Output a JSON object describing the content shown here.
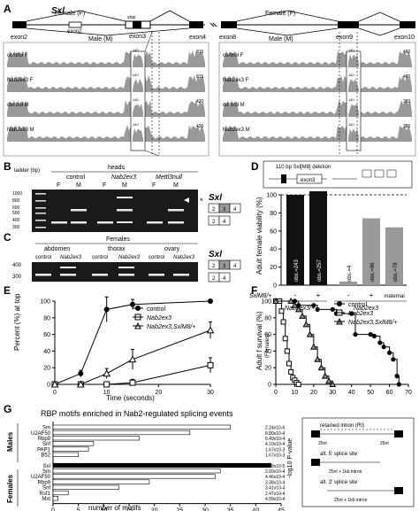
{
  "panel_labels": [
    "A",
    "B",
    "C",
    "D",
    "E",
    "F",
    "G"
  ],
  "panelA": {
    "gene": "Sxl",
    "left_exons": [
      "exon2",
      "exon2",
      "exon3",
      "exon4"
    ],
    "female_label": "Female (F)",
    "male_label": "Male (M)",
    "stop_label": "stop",
    "right_exons": [
      "exon8",
      "exon9",
      "exon10"
    ],
    "right_female_label": "Female (F)",
    "right_male_label": "Male (M)",
    "left_tracks": [
      {
        "label": "control F",
        "scale": "815"
      },
      {
        "label": "Nab2ex3 F",
        "scale": "815"
      },
      {
        "label": "control M",
        "scale": "420"
      },
      {
        "label": "Nab2ex3 M",
        "scale": "420"
      }
    ],
    "right_tracks": [
      {
        "label": "control F",
        "scale": "480"
      },
      {
        "label": "Nab2ex3 F",
        "scale": "480"
      },
      {
        "label": "control M",
        "scale": "380"
      },
      {
        "label": "Nab2ex3 M",
        "scale": "380"
      }
    ],
    "inset_scales": [
      "140",
      "140",
      "140",
      "140"
    ],
    "allele_sup": "ex3"
  },
  "panelB": {
    "ladder": "ladder (bp)",
    "ladder_marks": [
      "1000",
      "800",
      "600",
      "500",
      "400",
      "300"
    ],
    "heads_label": "heads",
    "groups": [
      "control",
      "Nab2ex3",
      "Mettl3null"
    ],
    "lanes": [
      "F",
      "M",
      "F",
      "M",
      "F",
      "M"
    ],
    "gene": "Sxl",
    "star": "*",
    "exons_top": [
      "2",
      "3",
      "4"
    ],
    "exons_bottom": [
      "2",
      "4"
    ]
  },
  "panelC": {
    "females_label": "Females",
    "tissues": [
      "abdomen",
      "thorax",
      "ovary"
    ],
    "lanes": [
      "control",
      "Nab2ex3",
      "control",
      "Nab2ex3",
      "control",
      "Nab2ex3"
    ],
    "ladder_marks": [
      "400",
      "300"
    ],
    "gene": "Sxl",
    "exons_top": [
      "2",
      "3",
      "4"
    ],
    "exons_bottom": [
      "2",
      "4"
    ]
  },
  "panelD": {
    "inset_text": "110 bp Sxl[M8] deletion",
    "exon_label": "exon3",
    "ylabel": "Adult female viability (%)",
    "row1_label": "SxlM8/+",
    "row1_values": [
      "-",
      "+",
      "-",
      "+",
      "maternal"
    ],
    "group1": "Nab2ex3/+",
    "group2": "Nab2ex3",
    "chart_data": {
      "type": "bar",
      "categories": [
        "Nab2ex3/+ ; -",
        "Nab2ex3/+ ; SxlM8/+",
        "Nab2ex3 ; -",
        "Nab2ex3 ; SxlM8/+",
        "Nab2ex3 ; maternal"
      ],
      "values": [
        100,
        104,
        4,
        74,
        64
      ],
      "bar_labels": [
        "obs.=243",
        "obs.=257",
        "obs.=4",
        "obs.=86",
        "obs.=78"
      ],
      "ylim": [
        0,
        100
      ],
      "yticks": [
        0,
        20,
        40,
        60,
        80,
        100
      ]
    }
  },
  "panelE": {
    "ylabel": "Percent (%) at top",
    "xlabel": "Time (seconds)",
    "legend": [
      "control",
      "Nab2ex3",
      "Nab2ex3,SxlM8/+"
    ],
    "chart_data": {
      "type": "line",
      "x": [
        0,
        5,
        10,
        15,
        30
      ],
      "series": [
        {
          "name": "control",
          "values": [
            0,
            13,
            90,
            96,
            100
          ],
          "err": [
            0,
            4,
            15,
            6,
            0
          ]
        },
        {
          "name": "Nab2ex3",
          "values": [
            0,
            0,
            0,
            2,
            23
          ],
          "err": [
            0,
            0,
            0,
            4,
            9
          ]
        },
        {
          "name": "Nab2ex3,SxlM8/+",
          "values": [
            0,
            0,
            13,
            30,
            65
          ],
          "err": [
            0,
            0,
            6,
            12,
            10
          ]
        }
      ],
      "xlim": [
        0,
        30
      ],
      "ylim": [
        0,
        100
      ],
      "xticks": [
        0,
        10,
        20,
        30
      ],
      "yticks": [
        0,
        20,
        40,
        60,
        80,
        100
      ]
    }
  },
  "panelF": {
    "ylabel": "Adult f survival (%)",
    "ylabel2": "(Females)",
    "legend": [
      "control",
      "Nab2ex3",
      "Nab2ex3,SxlM8/+"
    ],
    "chart_data": {
      "type": "line",
      "xlim": [
        0,
        70
      ],
      "ylim": [
        0,
        100
      ],
      "xticks": [
        0,
        10,
        20,
        30,
        40,
        50,
        60,
        70
      ],
      "yticks": [
        0,
        20,
        40,
        60,
        80,
        100
      ],
      "series": [
        {
          "name": "control",
          "x": [
            0,
            10,
            12,
            20,
            22,
            30,
            32,
            40,
            42,
            50,
            52,
            55,
            57,
            60,
            62,
            64,
            65
          ],
          "y": [
            100,
            100,
            95,
            95,
            90,
            90,
            85,
            85,
            60,
            60,
            58,
            50,
            45,
            38,
            30,
            10,
            0
          ]
        },
        {
          "name": "Nab2ex3",
          "x": [
            0,
            2,
            3,
            4,
            5,
            6,
            7,
            8,
            9,
            10,
            11,
            12
          ],
          "y": [
            100,
            100,
            88,
            75,
            55,
            40,
            25,
            15,
            8,
            5,
            2,
            0
          ]
        },
        {
          "name": "Nab2ex3,SxlM8/+",
          "x": [
            0,
            8,
            10,
            12,
            14,
            16,
            18,
            20,
            22,
            24,
            26,
            28,
            30
          ],
          "y": [
            100,
            100,
            95,
            90,
            82,
            72,
            60,
            45,
            30,
            20,
            10,
            4,
            0
          ]
        }
      ]
    }
  },
  "panelG": {
    "title": "RBP motifs enriched in Nab2-regulated splicing events",
    "xlabel": "number of motifs",
    "right_axis_label": "-log10 P-value",
    "male_group": "Males",
    "female_group": "Females",
    "chart_data": {
      "type": "bar",
      "orientation": "horizontal",
      "xlim": [
        0,
        45
      ],
      "xticks": [
        0,
        5,
        10,
        15,
        20,
        25,
        30,
        35,
        40,
        45
      ],
      "males": [
        {
          "name": "Sm",
          "value": 35,
          "p": "2.24x10-6"
        },
        {
          "name": "U2AF50",
          "value": 27,
          "p": "8.80x10-4"
        },
        {
          "name": "Rbp9",
          "value": 17,
          "p": "6.49x10-4"
        },
        {
          "name": "Snf",
          "value": 8,
          "p": "4.10x10-4"
        },
        {
          "name": "PAP1",
          "value": 7,
          "p": "1.67x10-3"
        },
        {
          "name": "B52",
          "value": 5,
          "p": "1.67x10-3"
        }
      ],
      "females": [
        {
          "name": "Sxl",
          "value": 43,
          "p": "4.48x10-5"
        },
        {
          "name": "Sm",
          "value": 33,
          "p": "2.09x10-4"
        },
        {
          "name": "U2AF50",
          "value": 32,
          "p": "4.46x10-4"
        },
        {
          "name": "Rbp9",
          "value": 19,
          "p": "3.38x10-4"
        },
        {
          "name": "Snf",
          "value": 13,
          "p": "3.41x10-4"
        },
        {
          "name": "Rsf1",
          "value": 3,
          "p": "2.47x10-4"
        },
        {
          "name": "Mxt",
          "value": 1,
          "p": "4.99x10-4"
        }
      ]
    },
    "legend": {
      "ri_title": "retained intron (RI)",
      "a5_title": "alt. 5' splice site",
      "a3_title": "alt. 3' splice site",
      "nt_label": "25nt",
      "intron_label": "25nt + 1kb intron"
    }
  },
  "colors": {
    "black": "#000000",
    "dark_gray": "#444444",
    "light_gray": "#999999",
    "white": "#ffffff"
  }
}
